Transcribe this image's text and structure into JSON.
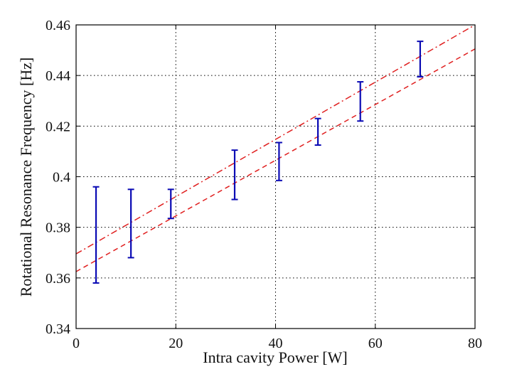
{
  "chart_data": {
    "type": "scatter",
    "title": "",
    "xlabel": "Intra  cavity Power [W]",
    "ylabel": "Rotational Resonance Frequency [Hz]",
    "xlim": [
      0,
      80
    ],
    "ylim": [
      0.34,
      0.46
    ],
    "x_ticks": [
      0,
      20,
      40,
      60,
      80
    ],
    "x_tick_labels": [
      "0",
      "20",
      "40",
      "60",
      "80"
    ],
    "y_ticks": [
      0.34,
      0.36,
      0.38,
      0.4,
      0.42,
      0.44,
      0.46
    ],
    "y_tick_labels": [
      "0.34",
      "0.36",
      "0.38",
      "0.4",
      "0.42",
      "0.44",
      "0.46"
    ],
    "grid": true,
    "series": [
      {
        "name": "measurements",
        "kind": "errorbar",
        "color": "#0a0ab4",
        "points": [
          {
            "x": 4,
            "low": 0.358,
            "high": 0.396
          },
          {
            "x": 11,
            "low": 0.368,
            "high": 0.395
          },
          {
            "x": 19,
            "low": 0.3835,
            "high": 0.395
          },
          {
            "x": 31.8,
            "low": 0.391,
            "high": 0.4105
          },
          {
            "x": 40.7,
            "low": 0.3985,
            "high": 0.4135
          },
          {
            "x": 48.5,
            "low": 0.4125,
            "high": 0.423
          },
          {
            "x": 57,
            "low": 0.422,
            "high": 0.4375
          },
          {
            "x": 69,
            "low": 0.4395,
            "high": 0.4535
          }
        ]
      },
      {
        "name": "upper bound",
        "kind": "line",
        "style": "dashdot",
        "color": "#e02020",
        "x": [
          0,
          80
        ],
        "y": [
          0.3695,
          0.46
        ]
      },
      {
        "name": "lower bound",
        "kind": "line",
        "style": "dashed",
        "color": "#e02020",
        "x": [
          0,
          80
        ],
        "y": [
          0.3625,
          0.4505
        ]
      }
    ]
  }
}
